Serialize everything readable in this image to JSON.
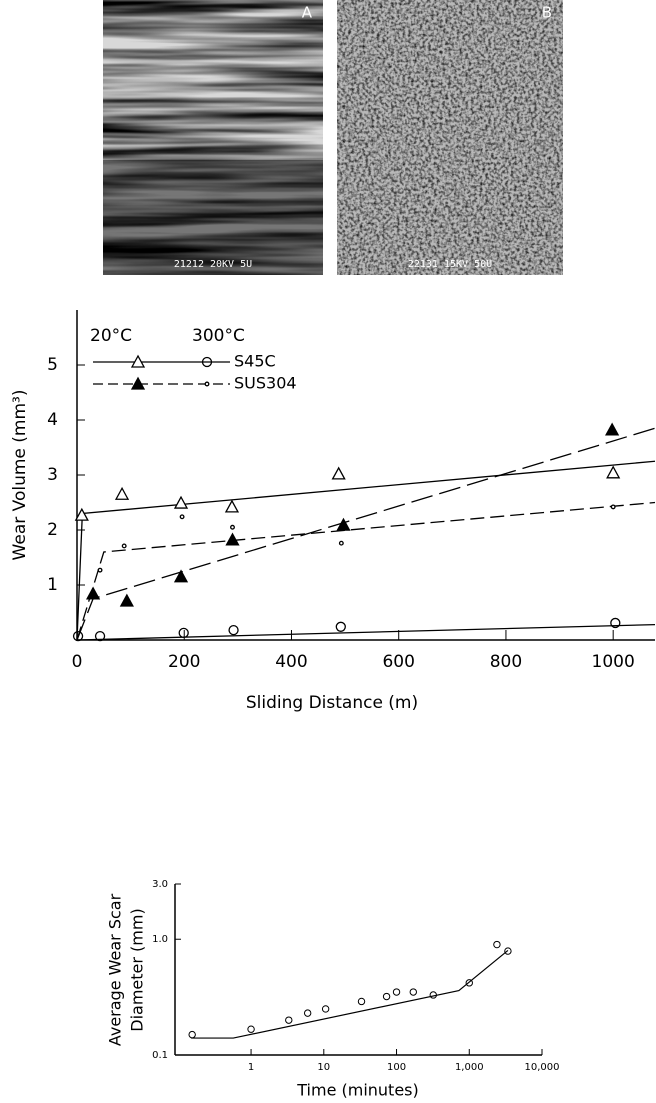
{
  "panels": [
    {
      "label": "A",
      "caption": "21212 20KV 5U"
    },
    {
      "label": "B",
      "caption": "22131 15KV 50U"
    }
  ],
  "chart_data": [
    {
      "type": "scatter",
      "xlabel": "Sliding Distance (m)",
      "ylabel": "Wear Volume (mm³)",
      "xlim": [
        0,
        1078
      ],
      "ylim": [
        0,
        6
      ],
      "xticks": [
        0,
        200,
        400,
        600,
        800,
        1000
      ],
      "yticks": [
        1,
        2,
        3,
        4,
        5
      ],
      "legend": {
        "headers": [
          "20°C",
          "300°C"
        ]
      },
      "series": [
        {
          "name": "S45C",
          "line": "solid",
          "color": "#000000",
          "groups": [
            {
              "marker": "triangle-open",
              "x": [
                9,
                84,
                194,
                289,
                488,
                1000
              ],
              "values": [
                2.27,
                2.65,
                2.49,
                2.42,
                3.02,
                3.04
              ],
              "fit_x": [
                0,
                10,
                1078
              ],
              "fit_values": [
                0,
                2.3,
                3.25
              ]
            },
            {
              "marker": "circle-open",
              "x": [
                2,
                43,
                199,
                292,
                492,
                1004
              ],
              "values": [
                0.07,
                0.07,
                0.13,
                0.18,
                0.24,
                0.31
              ],
              "fit_x": [
                0,
                1078
              ],
              "fit_values": [
                0,
                0.28
              ]
            }
          ]
        },
        {
          "name": "SUS304",
          "line": "dashed",
          "color": "#000000",
          "groups": [
            {
              "marker": "triangle-filled",
              "x": [
                30,
                93,
                194,
                290,
                497,
                998
              ],
              "values": [
                0.84,
                0.71,
                1.15,
                1.82,
                2.09,
                3.82
              ],
              "fit_x": [
                0,
                30,
                1078
              ],
              "fit_values": [
                0,
                0.75,
                3.85
              ]
            },
            {
              "marker": "dot",
              "x": [
                43,
                88,
                196,
                290,
                493,
                1000
              ],
              "values": [
                1.27,
                1.71,
                2.24,
                2.05,
                1.76,
                2.42
              ],
              "fit_x": [
                0,
                50,
                1078
              ],
              "fit_values": [
                0,
                1.6,
                2.5
              ]
            }
          ]
        }
      ]
    },
    {
      "type": "scatter",
      "xlabel": "Time (minutes)",
      "ylabel": [
        "Average Wear Scar",
        "Diameter (mm)"
      ],
      "xlog": true,
      "ylog": true,
      "xlim": [
        0.09,
        10000
      ],
      "ylim": [
        0.1,
        3.0
      ],
      "xticks": [
        1,
        10,
        100,
        {
          "value": 1000,
          "label": "1,000"
        },
        {
          "value": 10000,
          "label": "10,000"
        }
      ],
      "yticks": [
        0.1,
        {
          "value": 1,
          "label": "1.0"
        },
        {
          "value": 3,
          "label": "3.0"
        }
      ],
      "series": [
        {
          "marker": "circle-open",
          "color": "#000000",
          "x": [
            0.155,
            1,
            3.3,
            6,
            10.6,
            33,
            73,
            100,
            170,
            320,
            1000,
            2400,
            3400
          ],
          "values": [
            0.15,
            0.167,
            0.2,
            0.23,
            0.25,
            0.29,
            0.32,
            0.35,
            0.35,
            0.33,
            0.42,
            0.9,
            0.79
          ],
          "fit_x": [
            0.15,
            0.57,
            720,
            3400
          ],
          "fit_values": [
            0.14,
            0.14,
            0.36,
            0.8
          ]
        }
      ]
    }
  ]
}
